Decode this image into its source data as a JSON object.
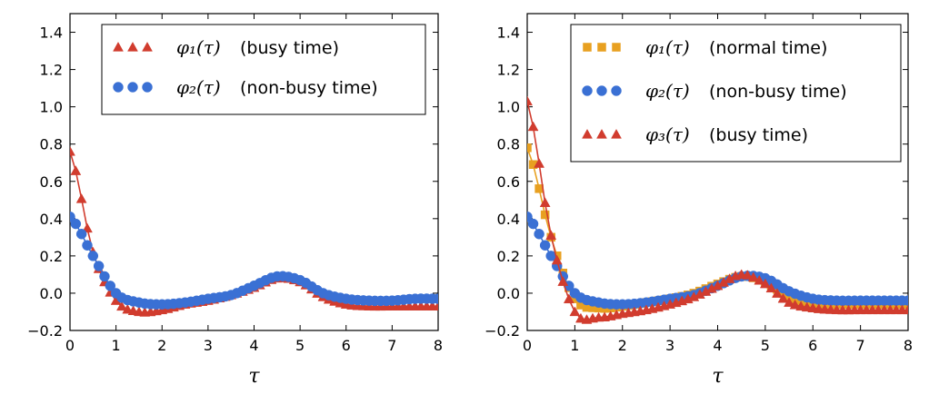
{
  "chart_data": [
    {
      "type": "line",
      "title": "",
      "xlabel": "τ",
      "ylabel": "",
      "xlim": [
        0,
        8
      ],
      "ylim": [
        -0.2,
        1.5
      ],
      "xticks": [
        0,
        1,
        2,
        3,
        4,
        5,
        6,
        7,
        8
      ],
      "yticks": [
        -0.2,
        0.0,
        0.2,
        0.4,
        0.6,
        0.8,
        1.0,
        1.2,
        1.4
      ],
      "xtick_labels": [
        "0",
        "1",
        "2",
        "3",
        "4",
        "5",
        "6",
        "7",
        "8"
      ],
      "ytick_labels": [
        "−0.2",
        "0.0",
        "0.2",
        "0.4",
        "0.6",
        "0.8",
        "1.0",
        "1.2",
        "1.4"
      ],
      "legend_position": "top-right",
      "series": [
        {
          "name": "φ1(τ) (busy time)",
          "math": "φ₁(τ)",
          "label": "(busy time)",
          "marker": "triangle",
          "color": "#d13c2e",
          "x": [
            0,
            0.5,
            1,
            1.5,
            2,
            2.5,
            3,
            3.5,
            4,
            4.5,
            5,
            5.5,
            6,
            6.5,
            7,
            7.5,
            8
          ],
          "y": [
            0.76,
            0.22,
            -0.04,
            -0.1,
            -0.09,
            -0.06,
            -0.04,
            -0.01,
            0.03,
            0.08,
            0.06,
            -0.02,
            -0.06,
            -0.07,
            -0.07,
            -0.07,
            -0.07
          ]
        },
        {
          "name": "φ2(τ) (non-busy time)",
          "math": "φ₂(τ)",
          "label": "(non-busy time)",
          "marker": "circle",
          "color": "#3a70d4",
          "x": [
            0,
            0.5,
            1,
            1.5,
            2,
            2.5,
            3,
            3.5,
            4,
            4.5,
            5,
            5.5,
            6,
            6.5,
            7,
            7.5,
            8
          ],
          "y": [
            0.41,
            0.2,
            0.0,
            -0.05,
            -0.06,
            -0.05,
            -0.03,
            -0.01,
            0.04,
            0.09,
            0.07,
            0.0,
            -0.03,
            -0.04,
            -0.04,
            -0.03,
            -0.03
          ]
        }
      ]
    },
    {
      "type": "line",
      "title": "",
      "xlabel": "τ",
      "ylabel": "",
      "xlim": [
        0,
        8
      ],
      "ylim": [
        -0.2,
        1.5
      ],
      "xticks": [
        0,
        1,
        2,
        3,
        4,
        5,
        6,
        7,
        8
      ],
      "yticks": [
        -0.2,
        0.0,
        0.2,
        0.4,
        0.6,
        0.8,
        1.0,
        1.2,
        1.4
      ],
      "xtick_labels": [
        "0",
        "1",
        "2",
        "3",
        "4",
        "5",
        "6",
        "7",
        "8"
      ],
      "ytick_labels": [
        "−0.2",
        "0.0",
        "0.2",
        "0.4",
        "0.6",
        "0.8",
        "1.0",
        "1.2",
        "1.4"
      ],
      "legend_position": "top-right",
      "series": [
        {
          "name": "φ1(τ) (normal time)",
          "math": "φ₁(τ)",
          "label": "(normal time)",
          "marker": "square",
          "color": "#e8a020",
          "x": [
            0,
            0.5,
            1,
            1.5,
            2,
            2.5,
            3,
            3.5,
            4,
            4.5,
            5,
            5.5,
            6,
            6.5,
            7,
            7.5,
            8
          ],
          "y": [
            0.78,
            0.3,
            -0.03,
            -0.08,
            -0.07,
            -0.05,
            -0.03,
            0.0,
            0.05,
            0.09,
            0.06,
            -0.02,
            -0.06,
            -0.06,
            -0.06,
            -0.06,
            -0.06
          ]
        },
        {
          "name": "φ2(τ) (non-busy time)",
          "math": "φ₂(τ)",
          "label": "(non-busy time)",
          "marker": "circle",
          "color": "#3a70d4",
          "x": [
            0,
            0.5,
            1,
            1.5,
            2,
            2.5,
            3,
            3.5,
            4,
            4.5,
            5,
            5.5,
            6,
            6.5,
            7,
            7.5,
            8
          ],
          "y": [
            0.41,
            0.2,
            0.0,
            -0.05,
            -0.06,
            -0.05,
            -0.03,
            -0.01,
            0.04,
            0.09,
            0.08,
            0.01,
            -0.03,
            -0.04,
            -0.04,
            -0.04,
            -0.04
          ]
        },
        {
          "name": "φ3(τ) (busy time)",
          "math": "φ₃(τ)",
          "label": "(busy time)",
          "marker": "triangle",
          "color": "#d13c2e",
          "x": [
            0,
            0.5,
            1,
            1.5,
            2,
            2.5,
            3,
            3.5,
            4,
            4.5,
            5,
            5.5,
            6,
            6.5,
            7,
            7.5,
            8
          ],
          "y": [
            1.03,
            0.31,
            -0.1,
            -0.13,
            -0.11,
            -0.09,
            -0.06,
            -0.02,
            0.04,
            0.1,
            0.05,
            -0.05,
            -0.08,
            -0.09,
            -0.09,
            -0.09,
            -0.09
          ]
        }
      ]
    }
  ]
}
